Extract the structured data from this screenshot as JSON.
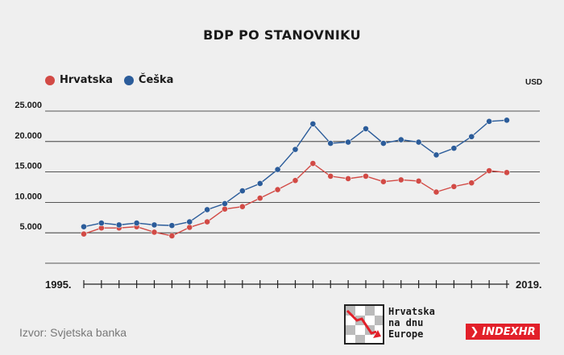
{
  "chart_data": {
    "type": "line",
    "title": "BDP PO STANOVNIKU",
    "unit": "USD",
    "x": [
      1995,
      1996,
      1997,
      1998,
      1999,
      2000,
      2001,
      2002,
      2003,
      2004,
      2005,
      2006,
      2007,
      2008,
      2009,
      2010,
      2011,
      2012,
      2013,
      2014,
      2015,
      2016,
      2017,
      2018,
      2019
    ],
    "x_start_label": "1995.",
    "x_end_label": "2019.",
    "ylim": [
      0,
      25000
    ],
    "yticks": [
      {
        "value": 5000,
        "label": "5.000"
      },
      {
        "value": 10000,
        "label": "10.000"
      },
      {
        "value": 15000,
        "label": "15.000"
      },
      {
        "value": 20000,
        "label": "20.000"
      },
      {
        "value": 25000,
        "label": "25.000"
      }
    ],
    "grid": "horizontal",
    "legend_position": "top-left",
    "series": [
      {
        "name": "Hrvatska",
        "color": "#d24a45",
        "values": [
          4800,
          5800,
          5800,
          6000,
          5100,
          4500,
          5900,
          6800,
          8900,
          9300,
          10700,
          12100,
          13600,
          16400,
          14300,
          13900,
          14300,
          13400,
          13700,
          13500,
          11700,
          12600,
          13200,
          15200,
          14900
        ]
      },
      {
        "name": "Češka",
        "color": "#2b5c9a",
        "values": [
          6000,
          6600,
          6300,
          6600,
          6300,
          6200,
          6800,
          8800,
          9800,
          11900,
          13100,
          15400,
          18700,
          22900,
          19700,
          19900,
          22100,
          19700,
          20300,
          19900,
          17800,
          18900,
          20800,
          23300,
          23500
        ]
      }
    ]
  },
  "source": "Izvor: Svjetska banka",
  "brand": {
    "line1": "Hrvatska",
    "line2": "na dnu",
    "line3": "Europe"
  },
  "badge": "INDEXHR",
  "colors": {
    "background": "#efefef",
    "accent_red": "#e2202a"
  }
}
